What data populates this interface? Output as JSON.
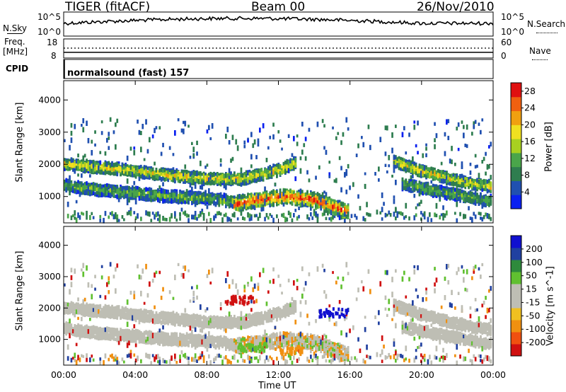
{
  "header": {
    "title": "TIGER (fitACF)",
    "beam": "Beam 00",
    "date": "26/Nov/2010"
  },
  "small_panels": {
    "nsky_label": "N.Sky",
    "nsky_ticks": [
      "10^5",
      "10^0"
    ],
    "nsearch_label": "N.Search",
    "nsearch_ticks": [
      "10^5",
      "10^0"
    ],
    "freq_label_1": "Freq.",
    "freq_label_2": "[MHz]",
    "freq_ticks": [
      "18",
      "8"
    ],
    "nave_label": "Nave",
    "nave_ticks": [
      "60",
      "0"
    ],
    "cpid_label": "CPID",
    "cpid_text": "normalsound (fast) 157"
  },
  "colors": {
    "power_scale": [
      "#0a20f0",
      "#2050b0",
      "#2e7d4f",
      "#4aa54a",
      "#a8d020",
      "#f0e020",
      "#f0a010",
      "#f06010",
      "#e01010"
    ],
    "velocity_scale": [
      "#d01010",
      "#f05010",
      "#f09010",
      "#f0c020",
      "#bebeb4",
      "#bebeb4",
      "#60c030",
      "#2e8a3c",
      "#2040a0",
      "#1010d0"
    ]
  },
  "chart_data": [
    {
      "type": "heatmap",
      "title": "",
      "xlabel": "Time UT",
      "ylabel": "Slant Range [km]",
      "x_ticks": [
        "00:00",
        "04:00",
        "08:00",
        "12:00",
        "16:00",
        "20:00",
        "00:00"
      ],
      "x_range_hours": [
        0,
        24
      ],
      "y_ticks": [
        1000,
        2000,
        3000,
        4000
      ],
      "ylim": [
        180,
        4600
      ],
      "colorbar": {
        "label": "Power [dB]",
        "ticks": [
          4,
          8,
          12,
          16,
          20,
          24,
          28
        ],
        "range": [
          0,
          30
        ]
      },
      "bands": [
        {
          "name": "upper band",
          "points": [
            [
              0,
              2000
            ],
            [
              3,
              1850
            ],
            [
              6,
              1650
            ],
            [
              8,
              1550
            ],
            [
              10,
              1550
            ],
            [
              12,
              1800
            ],
            [
              13,
              2050
            ]
          ],
          "peak_db": 20
        },
        {
          "name": "lower band",
          "points": [
            [
              0,
              1350
            ],
            [
              2,
              1200
            ],
            [
              4,
              1100
            ],
            [
              6,
              1000
            ],
            [
              8,
              950
            ],
            [
              9.5,
              850
            ]
          ],
          "peak_db": 14
        },
        {
          "name": "main echo",
          "points": [
            [
              9.5,
              750
            ],
            [
              11,
              900
            ],
            [
              12.5,
              1000
            ],
            [
              14,
              900
            ],
            [
              15,
              700
            ],
            [
              16,
              500
            ]
          ],
          "peak_db": 28
        },
        {
          "name": "evening band",
          "points": [
            [
              18.5,
              2100
            ],
            [
              20,
              1800
            ],
            [
              22,
              1500
            ],
            [
              24,
              1300
            ]
          ],
          "peak_db": 20
        },
        {
          "name": "evening band 2",
          "points": [
            [
              19,
              1400
            ],
            [
              21,
              1150
            ],
            [
              23,
              950
            ],
            [
              24,
              850
            ]
          ],
          "peak_db": 14
        }
      ]
    },
    {
      "type": "heatmap",
      "title": "",
      "xlabel": "Time UT",
      "ylabel": "Slant Range [km]",
      "x_ticks": [
        "00:00",
        "04:00",
        "08:00",
        "12:00",
        "16:00",
        "20:00",
        "00:00"
      ],
      "x_range_hours": [
        0,
        24
      ],
      "y_ticks": [
        1000,
        2000,
        3000,
        4000
      ],
      "ylim": [
        180,
        4600
      ],
      "colorbar": {
        "label": "Velocity [m s^-1]",
        "ticks": [
          200,
          100,
          50,
          15,
          -15,
          -50,
          -100,
          -200
        ],
        "range": [
          -250,
          250
        ]
      },
      "features": [
        {
          "name": "ground scatter upper",
          "velocity": 0
        },
        {
          "name": "ground scatter lower",
          "velocity": 0
        },
        {
          "name": "red patch",
          "time": 9.8,
          "range": 2300,
          "velocity": -220
        },
        {
          "name": "orange patch",
          "time": 12.5,
          "range": 700,
          "velocity": -80
        },
        {
          "name": "blue patches",
          "time": 15,
          "range": 1900,
          "velocity": 200
        },
        {
          "name": "green patches",
          "time": 10.5,
          "range": 800,
          "velocity": 50
        }
      ]
    }
  ]
}
